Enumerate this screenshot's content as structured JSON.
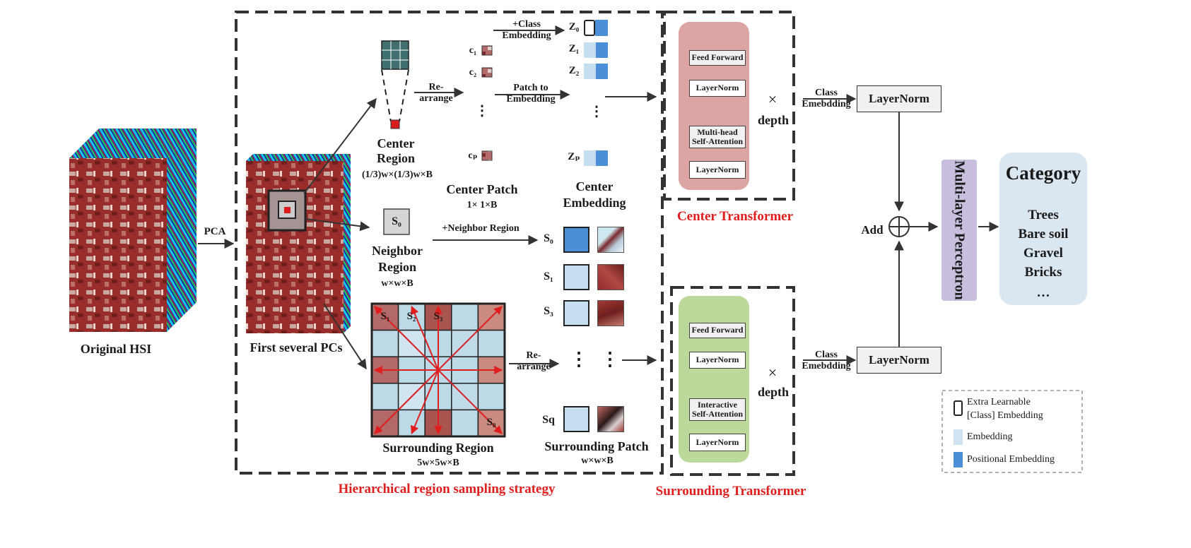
{
  "input": {
    "original_label": "Original HSI",
    "pca_label": "PCA",
    "pcs_label": "First several PCs"
  },
  "center_region": {
    "title": "Center",
    "title2": "Region",
    "dims": "(1/3)w×(1/3)w×B",
    "rearrange": "Re-",
    "rearrange2": "arrange",
    "tokens": [
      "c₁",
      "c₂",
      "⋮",
      "cₚ"
    ],
    "patch_title": "Center Patch",
    "patch_dims": "1× 1×B",
    "class_embedding": "+Class",
    "class_embedding2": "Embedding",
    "patch_to_embedding": "Patch to",
    "patch_to_embedding2": "Embedding",
    "z_tokens": [
      "Z₀",
      "Z₁",
      "Z₂",
      "⋮",
      "Zₚ"
    ],
    "embedding_title": "Center",
    "embedding_title2": "Embedding"
  },
  "neighbor_region": {
    "token": "S₀",
    "title": "Neighbor",
    "title2": "Region",
    "dims": "w×w×B",
    "plus_label": "+Neighbor Region"
  },
  "surrounding_region": {
    "grid_labels": [
      "S₁",
      "S₂",
      "S₃",
      "S₀"
    ],
    "title": "Surrounding  Region",
    "dims": "5w×5w×B",
    "rearrange": "Re-",
    "rearrange2": "arrange",
    "s_tokens": [
      "S₀",
      "S₁",
      "S₃",
      "Sq"
    ],
    "patch_title": "Surrounding  Patch",
    "patch_dims": "w×w×B"
  },
  "strategy_label": "Hierarchical region sampling strategy",
  "center_transformer": {
    "title": "Center Transformer",
    "blocks": [
      "Feed Forward",
      "LayerNorm",
      "Multi-head Self-Attention",
      "LayerNorm"
    ],
    "times": "×",
    "depth": "depth",
    "class_label": "Class",
    "class_label2": "Emebdding",
    "layernorm": "LayerNorm"
  },
  "surrounding_transformer": {
    "title": "Surrounding Transformer",
    "blocks": [
      "Feed Forward",
      "LayerNorm",
      "Interactive Self-Attention",
      "LayerNorm"
    ],
    "times": "×",
    "depth": "depth",
    "class_label": "Class",
    "class_label2": "Emebdding",
    "layernorm": "LayerNorm"
  },
  "fusion": {
    "add_label": "Add",
    "mlp_label": "Multi-layer Perceptron"
  },
  "category": {
    "title": "Category",
    "items": [
      "Trees",
      "Bare soil",
      "Gravel",
      "Bricks",
      "…"
    ]
  },
  "legend": {
    "items": [
      {
        "label": "Extra Learnable",
        "label2": "[Class] Embedding",
        "color": "#ffffff"
      },
      {
        "label": "Embedding",
        "color": "#cfe3f3"
      },
      {
        "label": "Positional Embedding",
        "color": "#4a8fd8"
      }
    ]
  },
  "colors": {
    "red_text": "#e01e1e",
    "center_tf_bg": "#dda4a4",
    "surround_tf_bg": "#bcd89a",
    "mlp_bg": "#c8bedd",
    "category_bg": "#dbe7f0",
    "embedding_light": "#c5dff1",
    "embedding_dark": "#4a8fd8"
  }
}
